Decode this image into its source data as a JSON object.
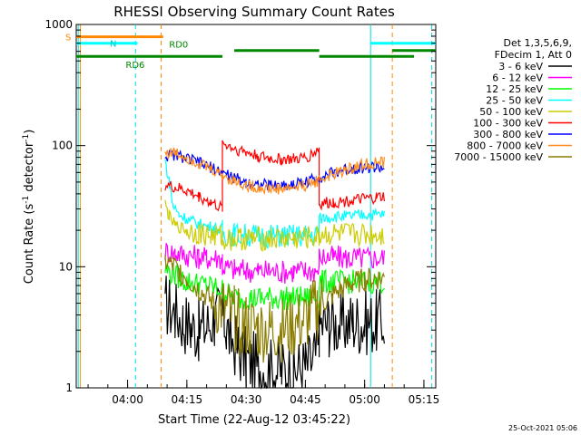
{
  "chart_data": {
    "type": "line",
    "title": "RHESSI Observing Summary Count Rates",
    "xlabel": "Start Time (22-Aug-12 03:45:22)",
    "ylabel_main": "Count Rate (s",
    "ylabel_sup1": "-1",
    "ylabel_mid": " detector",
    "ylabel_sup2": "-1",
    "ylabel_end": ")",
    "ylog": true,
    "ylim": [
      1,
      1000
    ],
    "xlim": [
      227,
      318
    ],
    "x_ticks": [
      {
        "value": 240,
        "label": "04:00"
      },
      {
        "value": 255,
        "label": "04:15"
      },
      {
        "value": 270,
        "label": "04:30"
      },
      {
        "value": 285,
        "label": "04:45"
      },
      {
        "value": 300,
        "label": "05:00"
      },
      {
        "value": 315,
        "label": "05:15"
      }
    ],
    "y_ticks": [
      {
        "value": 1,
        "label": "1"
      },
      {
        "value": 10,
        "label": "10"
      },
      {
        "value": 100,
        "label": "100"
      },
      {
        "value": 1000,
        "label": "1000"
      }
    ],
    "legend_header": [
      "Det 1,3,5,6,9,",
      "FDecim 1, Att 0"
    ],
    "legend_position": "right",
    "series": [
      {
        "name": "3 - 6 keV",
        "color": "#000000",
        "points": [
          [
            249.5,
            5
          ],
          [
            252,
            4.2
          ],
          [
            254,
            3.6
          ],
          [
            256,
            3.2
          ],
          [
            258,
            3
          ],
          [
            260,
            3.2
          ],
          [
            262,
            3.8
          ],
          [
            264,
            3.9
          ],
          [
            265,
            3.2
          ],
          [
            266,
            2.6
          ],
          [
            268,
            2.1
          ],
          [
            270,
            1.7
          ],
          [
            273,
            1.5
          ],
          [
            276,
            1.4
          ],
          [
            279,
            1.4
          ],
          [
            282,
            1.4
          ],
          [
            285,
            1.5
          ],
          [
            287,
            1.7
          ],
          [
            288.5,
            2.1
          ],
          [
            288.5,
            3.3
          ],
          [
            291,
            3.4
          ],
          [
            294,
            3.4
          ],
          [
            297,
            3.5
          ],
          [
            300,
            3.5
          ],
          [
            303,
            3.5
          ],
          [
            305,
            3.5
          ]
        ]
      },
      {
        "name": "6 - 12 keV",
        "color": "#ff00ff",
        "points": [
          [
            249.5,
            13.5
          ],
          [
            252,
            13
          ],
          [
            255,
            12.5
          ],
          [
            258,
            12
          ],
          [
            260,
            11.8
          ],
          [
            262,
            11.8
          ],
          [
            264,
            11.8
          ],
          [
            264,
            10
          ],
          [
            267,
            9.5
          ],
          [
            270,
            9.3
          ],
          [
            273,
            9.2
          ],
          [
            276,
            9.2
          ],
          [
            279,
            9.1
          ],
          [
            282,
            9.2
          ],
          [
            285,
            9.2
          ],
          [
            288.5,
            9.3
          ],
          [
            288.5,
            12
          ],
          [
            292,
            12
          ],
          [
            296,
            11.8
          ],
          [
            300,
            11.8
          ],
          [
            305,
            11.8
          ]
        ]
      },
      {
        "name": "12 - 25 keV",
        "color": "#00ff00",
        "points": [
          [
            249.5,
            9.5
          ],
          [
            252,
            8.5
          ],
          [
            255,
            7.5
          ],
          [
            258,
            7.2
          ],
          [
            260,
            7
          ],
          [
            262,
            6.7
          ],
          [
            264,
            6.5
          ],
          [
            265,
            6
          ],
          [
            268,
            5.5
          ],
          [
            271,
            5.5
          ],
          [
            274,
            5.5
          ],
          [
            277,
            5.5
          ],
          [
            280,
            5.5
          ],
          [
            283,
            5.5
          ],
          [
            286,
            5.5
          ],
          [
            288.5,
            5.7
          ],
          [
            288.5,
            7.5
          ],
          [
            292,
            7.5
          ],
          [
            296,
            7.5
          ],
          [
            300,
            7.5
          ],
          [
            305,
            7.5
          ]
        ]
      },
      {
        "name": "25 - 50 keV",
        "color": "#00ffff",
        "points": [
          [
            249.5,
            75
          ],
          [
            250.5,
            50
          ],
          [
            251.5,
            32
          ],
          [
            253,
            27
          ],
          [
            256,
            24
          ],
          [
            259,
            22
          ],
          [
            262,
            21
          ],
          [
            264,
            20
          ],
          [
            264,
            18.5
          ],
          [
            267,
            18.5
          ],
          [
            270,
            18.2
          ],
          [
            273,
            18
          ],
          [
            276,
            18
          ],
          [
            279,
            18
          ],
          [
            282,
            18
          ],
          [
            285,
            18
          ],
          [
            288.5,
            18.3
          ],
          [
            288.5,
            25
          ],
          [
            292,
            26
          ],
          [
            296,
            26
          ],
          [
            300,
            27
          ],
          [
            305,
            27
          ]
        ]
      },
      {
        "name": "50 - 100 keV",
        "color": "#cccc00",
        "points": [
          [
            249.5,
            33
          ],
          [
            250.5,
            26
          ],
          [
            252,
            22
          ],
          [
            255,
            20
          ],
          [
            258,
            19
          ],
          [
            261,
            18
          ],
          [
            264,
            17.8
          ],
          [
            264,
            17
          ],
          [
            270,
            17
          ],
          [
            276,
            17
          ],
          [
            282,
            17
          ],
          [
            288.5,
            17.5
          ],
          [
            288.5,
            18.5
          ],
          [
            295,
            18.5
          ],
          [
            300,
            18.5
          ],
          [
            305,
            18.5
          ]
        ]
      },
      {
        "name": "100 - 300 keV",
        "color": "#ff0000",
        "points": [
          [
            249.5,
            47
          ],
          [
            252,
            45
          ],
          [
            255,
            42
          ],
          [
            258,
            38
          ],
          [
            261,
            34
          ],
          [
            264,
            30
          ],
          [
            264,
            105
          ],
          [
            267,
            95
          ],
          [
            270,
            88
          ],
          [
            273,
            82
          ],
          [
            276,
            78
          ],
          [
            279,
            77
          ],
          [
            282,
            77
          ],
          [
            285,
            79
          ],
          [
            287,
            86
          ],
          [
            288.5,
            95
          ],
          [
            288.5,
            33
          ],
          [
            292,
            34
          ],
          [
            296,
            35
          ],
          [
            300,
            36
          ],
          [
            303,
            37
          ],
          [
            305,
            38
          ]
        ]
      },
      {
        "name": "300 - 800 keV",
        "color": "#0000ff",
        "points": [
          [
            249.5,
            82
          ],
          [
            252,
            84
          ],
          [
            255,
            78
          ],
          [
            258,
            72
          ],
          [
            261,
            66
          ],
          [
            264,
            60
          ],
          [
            267,
            54
          ],
          [
            270,
            50
          ],
          [
            273,
            48
          ],
          [
            276,
            47
          ],
          [
            279,
            47
          ],
          [
            282,
            48
          ],
          [
            285,
            50
          ],
          [
            288,
            54
          ],
          [
            291,
            58
          ],
          [
            294,
            62
          ],
          [
            297,
            65
          ],
          [
            300,
            66
          ],
          [
            303,
            66
          ],
          [
            305,
            65
          ]
        ]
      },
      {
        "name": "800 - 7000 keV",
        "color": "#ff8c1a",
        "points": [
          [
            249.5,
            88
          ],
          [
            252,
            87
          ],
          [
            255,
            80
          ],
          [
            258,
            72
          ],
          [
            261,
            64
          ],
          [
            264,
            57
          ],
          [
            267,
            51
          ],
          [
            270,
            47
          ],
          [
            273,
            45
          ],
          [
            276,
            44
          ],
          [
            279,
            44
          ],
          [
            282,
            45
          ],
          [
            285,
            47
          ],
          [
            288,
            51
          ],
          [
            291,
            56
          ],
          [
            294,
            61
          ],
          [
            297,
            66
          ],
          [
            300,
            70
          ],
          [
            303,
            72
          ],
          [
            305,
            72
          ]
        ]
      },
      {
        "name": "7000 - 15000 keV",
        "color": "#8b7d00",
        "points": [
          [
            249.5,
            11
          ],
          [
            252,
            10
          ],
          [
            255,
            8
          ],
          [
            258,
            6.5
          ],
          [
            261,
            5.3
          ],
          [
            264,
            4.5
          ],
          [
            267,
            3.7
          ],
          [
            270,
            3.2
          ],
          [
            273,
            3
          ],
          [
            276,
            3
          ],
          [
            279,
            3
          ],
          [
            282,
            3.2
          ],
          [
            285,
            3.6
          ],
          [
            288,
            4.5
          ],
          [
            291,
            5.5
          ],
          [
            294,
            6.5
          ],
          [
            297,
            7.3
          ],
          [
            300,
            7.8
          ],
          [
            303,
            8
          ],
          [
            305,
            8
          ]
        ]
      }
    ],
    "vlines": [
      {
        "x": 227.5,
        "color": "#00dddd",
        "style": "solid"
      },
      {
        "x": 228,
        "color": "#ff8800",
        "style": "solid"
      },
      {
        "x": 242,
        "color": "#00dddd",
        "style": "dashed"
      },
      {
        "x": 248.5,
        "color": "#ff8800",
        "style": "dashed"
      },
      {
        "x": 301.5,
        "color": "#00dddd",
        "style": "solid"
      },
      {
        "x": 307,
        "color": "#ff8800",
        "style": "dashed"
      },
      {
        "x": 317,
        "color": "#00dddd",
        "style": "dashed"
      }
    ],
    "status_bars": [
      {
        "label": "S",
        "color": "#ff8800",
        "level": 790,
        "segments": [
          [
            227,
            249
          ]
        ]
      },
      {
        "label": "N",
        "color": "#00ffff",
        "level": 700,
        "segments": [
          [
            227,
            242.5
          ],
          [
            301.5,
            318
          ]
        ]
      },
      {
        "label": "RD0",
        "color": "#008800",
        "level": 610,
        "segments": [
          [
            267,
            288.5
          ],
          [
            307,
            318
          ]
        ]
      },
      {
        "label": "RD6",
        "color": "#008800",
        "level": 545,
        "segments": [
          [
            227,
            264
          ],
          [
            288.5,
            312.5
          ]
        ]
      }
    ],
    "status_labels": {
      "S": "S",
      "N": "N",
      "RD0": "RD0",
      "RD6": "RD6"
    }
  },
  "footer_timestamp": "25-Oct-2021 05:06"
}
